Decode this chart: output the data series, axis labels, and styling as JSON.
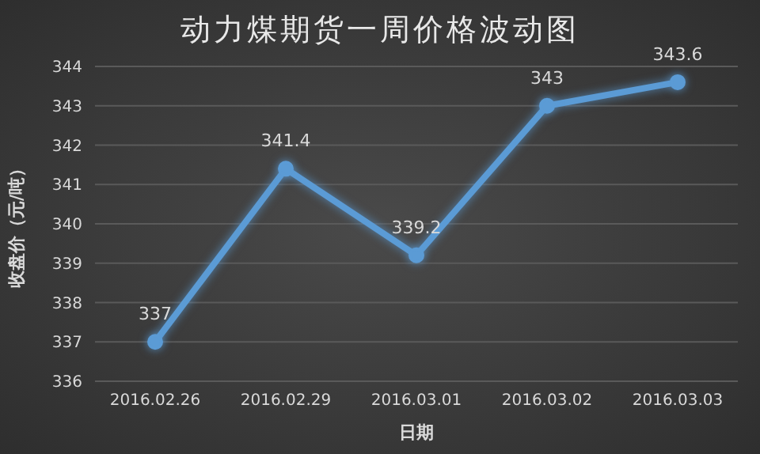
{
  "chart_data": {
    "type": "line",
    "title": "动力煤期货一周价格波动图",
    "xlabel": "日期",
    "ylabel": "收盘价（元/吨）",
    "categories": [
      "2016.02.26",
      "2016.02.29",
      "2016.03.01",
      "2016.03.02",
      "2016.03.03"
    ],
    "series": [
      {
        "color": "#5b9bd5",
        "values": [
          337,
          341.4,
          339.2,
          343,
          343.6
        ]
      }
    ],
    "ylim": [
      336,
      344
    ],
    "yticks": [
      336,
      337,
      338,
      339,
      340,
      341,
      342,
      343,
      344
    ],
    "grid": "y",
    "marker": "circle",
    "line_style": "solid",
    "data_labels": true,
    "legend": false
  }
}
